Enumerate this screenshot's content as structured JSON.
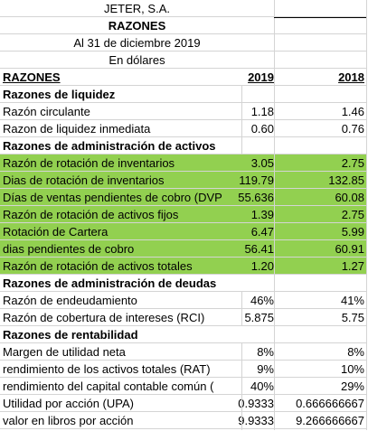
{
  "header": {
    "company": "JETER, S.A.",
    "title": "RAZONES",
    "date": "Al 31 de diciembre 2019",
    "currency": "En dólares"
  },
  "columns": {
    "label": "RAZONES",
    "year1": "2019",
    "year2": "2018"
  },
  "sections": {
    "liquidez": "Razones de liquidez",
    "activos": "Razones de administración de activos",
    "deudas": "Razones de administración de deudas",
    "rentabilidad": "Razones de rentabilidad"
  },
  "rows": [
    {
      "label": "Razón circulante",
      "v2019": "1.18",
      "v2018": "1.46"
    },
    {
      "label": "Razon de liquidez inmediata",
      "v2019": "0.60",
      "v2018": "0.76"
    },
    {
      "label": "Razón de rotación de inventarios",
      "v2019": "3.05",
      "v2018": "2.75"
    },
    {
      "label": "Dias de rotación de inventarios",
      "v2019": "119.79",
      "v2018": "132.85"
    },
    {
      "label": "Días de ventas pendientes de cobro (DVP",
      "v2019": "55.636",
      "v2018": "60.08"
    },
    {
      "label": "Razón de rotación de activos fijos",
      "v2019": "1.39",
      "v2018": "2.75"
    },
    {
      "label": "Rotación de Cartera",
      "v2019": "6.47",
      "v2018": "5.99"
    },
    {
      "label": "dias pendientes de cobro",
      "v2019": "56.41",
      "v2018": "60.91"
    },
    {
      "label": "Razón de rotación de activos totales",
      "v2019": "1.20",
      "v2018": "1.27"
    },
    {
      "label": "Razón de endeudamiento",
      "v2019": "46%",
      "v2018": "41%"
    },
    {
      "label": "Razón de cobertura de intereses (RCI)",
      "v2019": "5.875",
      "v2018": "5.75"
    },
    {
      "label": "Margen de utilidad neta",
      "v2019": "8%",
      "v2018": "8%"
    },
    {
      "label": "rendimiento de los activos totales (RAT)",
      "v2019": "9%",
      "v2018": "10%"
    },
    {
      "label": "rendimiento del capital contable común (",
      "v2019": "40%",
      "v2018": "29%"
    },
    {
      "label": "Utilidad por acción (UPA)",
      "v2019": "0.9333",
      "v2018": "0.666666667"
    },
    {
      "label": "valor en libros por acción",
      "v2019": "9.9333",
      "v2018": "9.266666667"
    }
  ],
  "colors": {
    "highlight": "#92d050",
    "grid": "#d4d4d4"
  }
}
